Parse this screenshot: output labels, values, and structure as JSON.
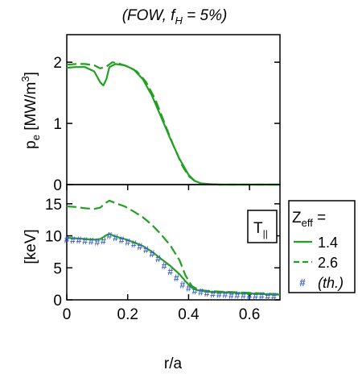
{
  "title": {
    "prefix": "(FOW, f",
    "sub": "H",
    "suffix": " = 5%)"
  },
  "colors": {
    "line": "#22a022",
    "marker": "#3a5fcd",
    "axis": "#000000"
  },
  "legend": {
    "header_main": "Z",
    "header_sub": "eff",
    "header_suffix": " =",
    "items": [
      {
        "label": "1.4",
        "style": "solid"
      },
      {
        "label": "2.6",
        "style": "dashed"
      },
      {
        "label": "(th.)",
        "style": "marker"
      }
    ]
  },
  "chart_data": [
    {
      "type": "line",
      "ylabel_main": "p",
      "ylabel_sub": "e",
      "ylabel_unit": " [MW/m",
      "ylabel_sup": "3",
      "ylabel_close": "]",
      "xlim": [
        0,
        0.7
      ],
      "ylim": [
        0,
        2.45
      ],
      "yticks": [
        0,
        1,
        2
      ],
      "ytick_labels": [
        "0",
        "1",
        "2"
      ],
      "series": [
        {
          "style": "solid",
          "x": [
            0,
            0.03,
            0.06,
            0.09,
            0.11,
            0.12,
            0.13,
            0.14,
            0.16,
            0.19,
            0.22,
            0.25,
            0.28,
            0.31,
            0.34,
            0.37,
            0.4,
            0.42,
            0.44,
            0.46,
            0.5,
            0.55,
            0.6,
            0.7
          ],
          "y": [
            1.91,
            1.92,
            1.92,
            1.85,
            1.67,
            1.62,
            1.72,
            1.92,
            1.97,
            1.95,
            1.88,
            1.72,
            1.45,
            1.1,
            0.75,
            0.42,
            0.16,
            0.06,
            0.02,
            0.01,
            0,
            0,
            0,
            0
          ]
        },
        {
          "style": "dashed",
          "x": [
            0,
            0.03,
            0.06,
            0.09,
            0.11,
            0.13,
            0.15,
            0.17,
            0.2,
            0.23,
            0.26,
            0.29,
            0.32,
            0.35,
            0.38,
            0.4,
            0.42,
            0.44,
            0.46,
            0.5,
            0.55,
            0.6,
            0.7
          ],
          "y": [
            1.96,
            1.97,
            1.97,
            1.95,
            1.9,
            1.93,
            2.0,
            1.98,
            1.93,
            1.85,
            1.68,
            1.4,
            1.02,
            0.64,
            0.3,
            0.14,
            0.06,
            0.02,
            0.01,
            0,
            0,
            0,
            0
          ]
        }
      ]
    },
    {
      "type": "line",
      "ylabel": "[keV]",
      "annotation_main": "T",
      "annotation_sub": "||",
      "xlabel": "r/a",
      "xlim": [
        0,
        0.7
      ],
      "ylim": [
        0,
        18
      ],
      "xticks": [
        0,
        0.2,
        0.4,
        0.6
      ],
      "xtick_labels": [
        "0",
        "0.2",
        "0.4",
        "0.6"
      ],
      "yticks": [
        0,
        5,
        10,
        15
      ],
      "ytick_labels": [
        "0",
        "5",
        "10",
        "15"
      ],
      "series": [
        {
          "style": "solid",
          "x": [
            0,
            0.03,
            0.06,
            0.09,
            0.11,
            0.13,
            0.14,
            0.16,
            0.19,
            0.22,
            0.25,
            0.28,
            0.31,
            0.34,
            0.37,
            0.39,
            0.41,
            0.43,
            0.46,
            0.5,
            0.55,
            0.6,
            0.65,
            0.7
          ],
          "y": [
            9.7,
            9.6,
            9.5,
            9.4,
            9.5,
            10.1,
            10.3,
            9.9,
            9.5,
            9.0,
            8.4,
            7.5,
            6.4,
            5.3,
            4.0,
            2.9,
            1.9,
            1.5,
            1.3,
            1.2,
            1.1,
            1.0,
            0.9,
            0.8
          ]
        },
        {
          "style": "dashed",
          "x": [
            0,
            0.03,
            0.06,
            0.09,
            0.11,
            0.13,
            0.14,
            0.16,
            0.19,
            0.22,
            0.25,
            0.28,
            0.31,
            0.34,
            0.37,
            0.39,
            0.41,
            0.43,
            0.46,
            0.5,
            0.55,
            0.6,
            0.65,
            0.7
          ],
          "y": [
            14.6,
            14.5,
            14.3,
            14.2,
            14.4,
            15.2,
            15.5,
            15.1,
            14.6,
            13.8,
            12.9,
            11.7,
            10.2,
            8.5,
            6.2,
            3.8,
            2.2,
            1.6,
            1.4,
            1.3,
            1.2,
            1.1,
            1.0,
            0.9
          ]
        },
        {
          "style": "marker",
          "x": [
            0,
            0.02,
            0.04,
            0.06,
            0.08,
            0.1,
            0.12,
            0.14,
            0.16,
            0.18,
            0.2,
            0.22,
            0.24,
            0.26,
            0.28,
            0.3,
            0.32,
            0.34,
            0.36,
            0.38,
            0.4,
            0.42,
            0.44,
            0.46,
            0.48,
            0.5,
            0.52,
            0.54,
            0.56,
            0.58,
            0.6,
            0.62,
            0.64,
            0.66,
            0.68
          ],
          "y": [
            9.4,
            9.3,
            9.3,
            9.2,
            9.1,
            9.0,
            9.2,
            10.0,
            9.7,
            9.3,
            9.0,
            8.7,
            8.3,
            7.8,
            7.2,
            6.4,
            5.3,
            4.4,
            3.4,
            2.3,
            1.8,
            1.4,
            1.2,
            1.0,
            0.9,
            0.8,
            0.8,
            0.7,
            0.7,
            0.7,
            0.6,
            0.6,
            0.6,
            0.5,
            0.5
          ]
        }
      ]
    }
  ]
}
